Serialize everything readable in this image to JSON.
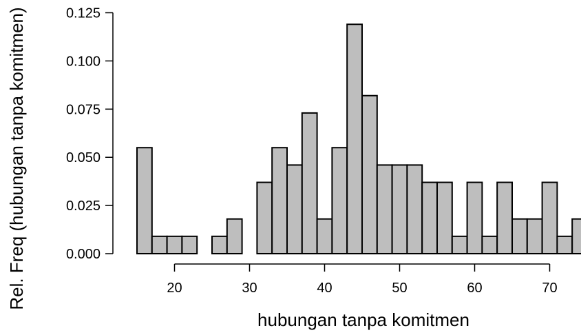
{
  "chart_data": {
    "type": "bar",
    "xlabel": "hubungan tanpa komitmen",
    "ylabel": "Rel. Freq (hubungan tanpa komitmen)",
    "xlim": [
      14.8,
      74.3
    ],
    "ylim": [
      0,
      0.125
    ],
    "bin_width": 2,
    "x_ticks": [
      20,
      30,
      40,
      50,
      60,
      70
    ],
    "x_tick_labels": [
      "20",
      "30",
      "40",
      "50",
      "60",
      "70"
    ],
    "y_ticks": [
      0,
      0.025,
      0.05,
      0.075,
      0.1,
      0.125
    ],
    "y_tick_labels": [
      "0.000",
      "0.025",
      "0.050",
      "0.075",
      "0.100",
      "0.125"
    ],
    "bins": [
      {
        "start": 15,
        "end": 17,
        "value": 0.055
      },
      {
        "start": 17,
        "end": 19,
        "value": 0.009
      },
      {
        "start": 19,
        "end": 21,
        "value": 0.009
      },
      {
        "start": 21,
        "end": 23,
        "value": 0.009
      },
      {
        "start": 23,
        "end": 25,
        "value": 0.0
      },
      {
        "start": 25,
        "end": 27,
        "value": 0.009
      },
      {
        "start": 27,
        "end": 29,
        "value": 0.018
      },
      {
        "start": 29,
        "end": 31,
        "value": 0.0
      },
      {
        "start": 31,
        "end": 33,
        "value": 0.037
      },
      {
        "start": 33,
        "end": 35,
        "value": 0.055
      },
      {
        "start": 35,
        "end": 37,
        "value": 0.046
      },
      {
        "start": 37,
        "end": 39,
        "value": 0.073
      },
      {
        "start": 39,
        "end": 41,
        "value": 0.018
      },
      {
        "start": 41,
        "end": 43,
        "value": 0.055
      },
      {
        "start": 43,
        "end": 45,
        "value": 0.119
      },
      {
        "start": 45,
        "end": 47,
        "value": 0.082
      },
      {
        "start": 47,
        "end": 49,
        "value": 0.046
      },
      {
        "start": 49,
        "end": 51,
        "value": 0.046
      },
      {
        "start": 51,
        "end": 53,
        "value": 0.046
      },
      {
        "start": 53,
        "end": 55,
        "value": 0.037
      },
      {
        "start": 55,
        "end": 57,
        "value": 0.037
      },
      {
        "start": 57,
        "end": 59,
        "value": 0.009
      },
      {
        "start": 59,
        "end": 61,
        "value": 0.037
      },
      {
        "start": 61,
        "end": 63,
        "value": 0.009
      },
      {
        "start": 63,
        "end": 65,
        "value": 0.037
      },
      {
        "start": 65,
        "end": 67,
        "value": 0.018
      },
      {
        "start": 67,
        "end": 69,
        "value": 0.018
      },
      {
        "start": 69,
        "end": 71,
        "value": 0.037
      },
      {
        "start": 71,
        "end": 73,
        "value": 0.009
      },
      {
        "start": 73,
        "end": 75,
        "value": 0.018
      }
    ],
    "bar_color": "#bebebe",
    "edge_color": "#000000",
    "grid": false
  }
}
